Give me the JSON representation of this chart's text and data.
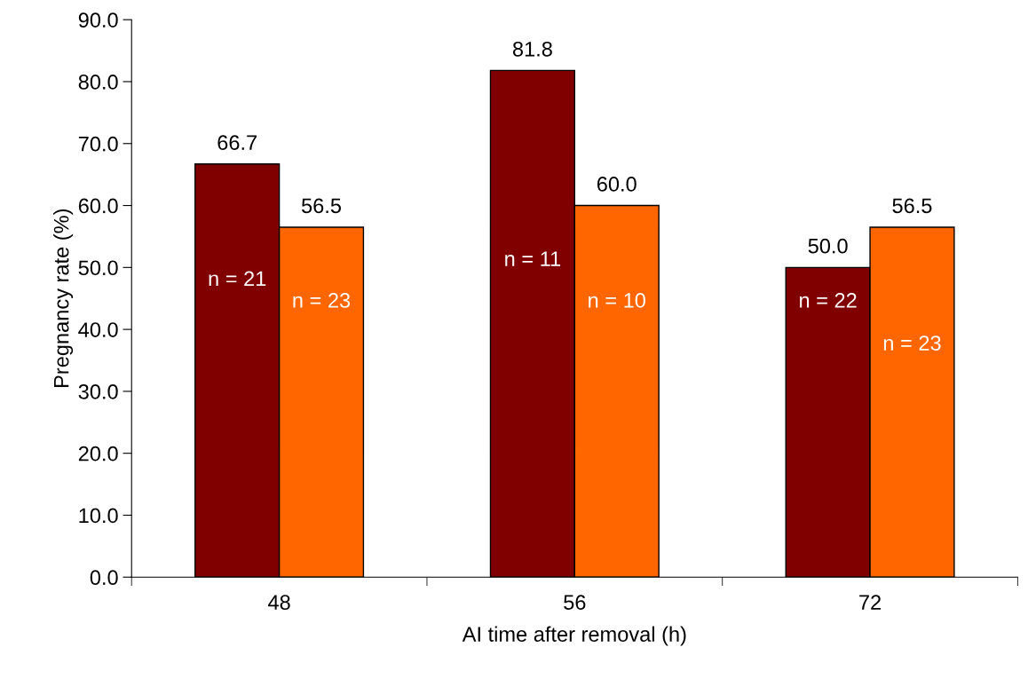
{
  "chart_data": {
    "type": "bar",
    "xlabel": "AI time after removal (h)",
    "ylabel": "Pregnancy rate (%)",
    "categories": [
      "48",
      "56",
      "72"
    ],
    "series": [
      {
        "color": "#800000",
        "values": [
          66.7,
          81.8,
          50.0
        ],
        "value_labels": [
          "66.7",
          "81.8",
          "50.0"
        ]
      },
      {
        "color": "#ff6600",
        "values": [
          56.5,
          60.0,
          56.5
        ],
        "value_labels": [
          "56.5",
          "60.0",
          "56.5"
        ]
      }
    ],
    "ylim": [
      0,
      90
    ],
    "yticks": [
      {
        "value": 0,
        "label": "0.0"
      },
      {
        "value": 10,
        "label": "10.0"
      },
      {
        "value": 20,
        "label": "20.0"
      },
      {
        "value": 30,
        "label": "30.0"
      },
      {
        "value": 40,
        "label": "40.0"
      },
      {
        "value": 50,
        "label": "50.0"
      },
      {
        "value": 60,
        "label": "60.0"
      },
      {
        "value": 70,
        "label": "70.0"
      },
      {
        "value": 80,
        "label": "80.0"
      },
      {
        "value": 90,
        "label": "90.0"
      }
    ],
    "annotations": [
      {
        "text": "n = 21",
        "x": "48",
        "y": 47.9
      },
      {
        "text": "n = 11",
        "x": "56",
        "y": 51.1
      },
      {
        "text": "n = 22",
        "x": "72",
        "y": 44.4
      },
      {
        "text": "n = 23",
        "x": "48",
        "y": 44.4
      },
      {
        "text": "n = 10",
        "x": "56",
        "y": 44.4
      },
      {
        "text": "n = 23",
        "x": "72",
        "y": 37.5
      }
    ],
    "grid": false,
    "legend": false
  }
}
